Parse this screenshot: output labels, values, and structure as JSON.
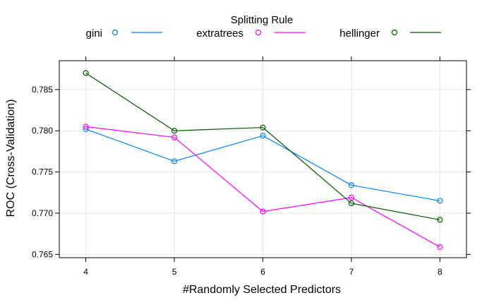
{
  "chart_data": {
    "type": "line",
    "title": "",
    "xlabel": "#Randomly Selected Predictors",
    "ylabel": "ROC (Cross-Validation)",
    "legend_title": "Splitting Rule",
    "legend_position": "top",
    "grid": true,
    "x": [
      4,
      5,
      6,
      7,
      8
    ],
    "x_ticks": [
      "4",
      "5",
      "6",
      "7",
      "8"
    ],
    "xlim": [
      3.7,
      8.3
    ],
    "y_ticks": [
      "0.765",
      "0.770",
      "0.775",
      "0.780",
      "0.785"
    ],
    "ylim": [
      0.7646,
      0.7885
    ],
    "series": [
      {
        "name": "gini",
        "color": "#0080ff",
        "values": [
          0.7802,
          0.7763,
          0.7794,
          0.7734,
          0.7715
        ]
      },
      {
        "name": "extratrees",
        "color": "#ff00ff",
        "values": [
          0.7805,
          0.7792,
          0.7702,
          0.7719,
          0.7659
        ]
      },
      {
        "name": "hellinger",
        "color": "#005a00",
        "values": [
          0.787,
          0.78,
          0.7804,
          0.7712,
          0.7692
        ]
      }
    ]
  }
}
